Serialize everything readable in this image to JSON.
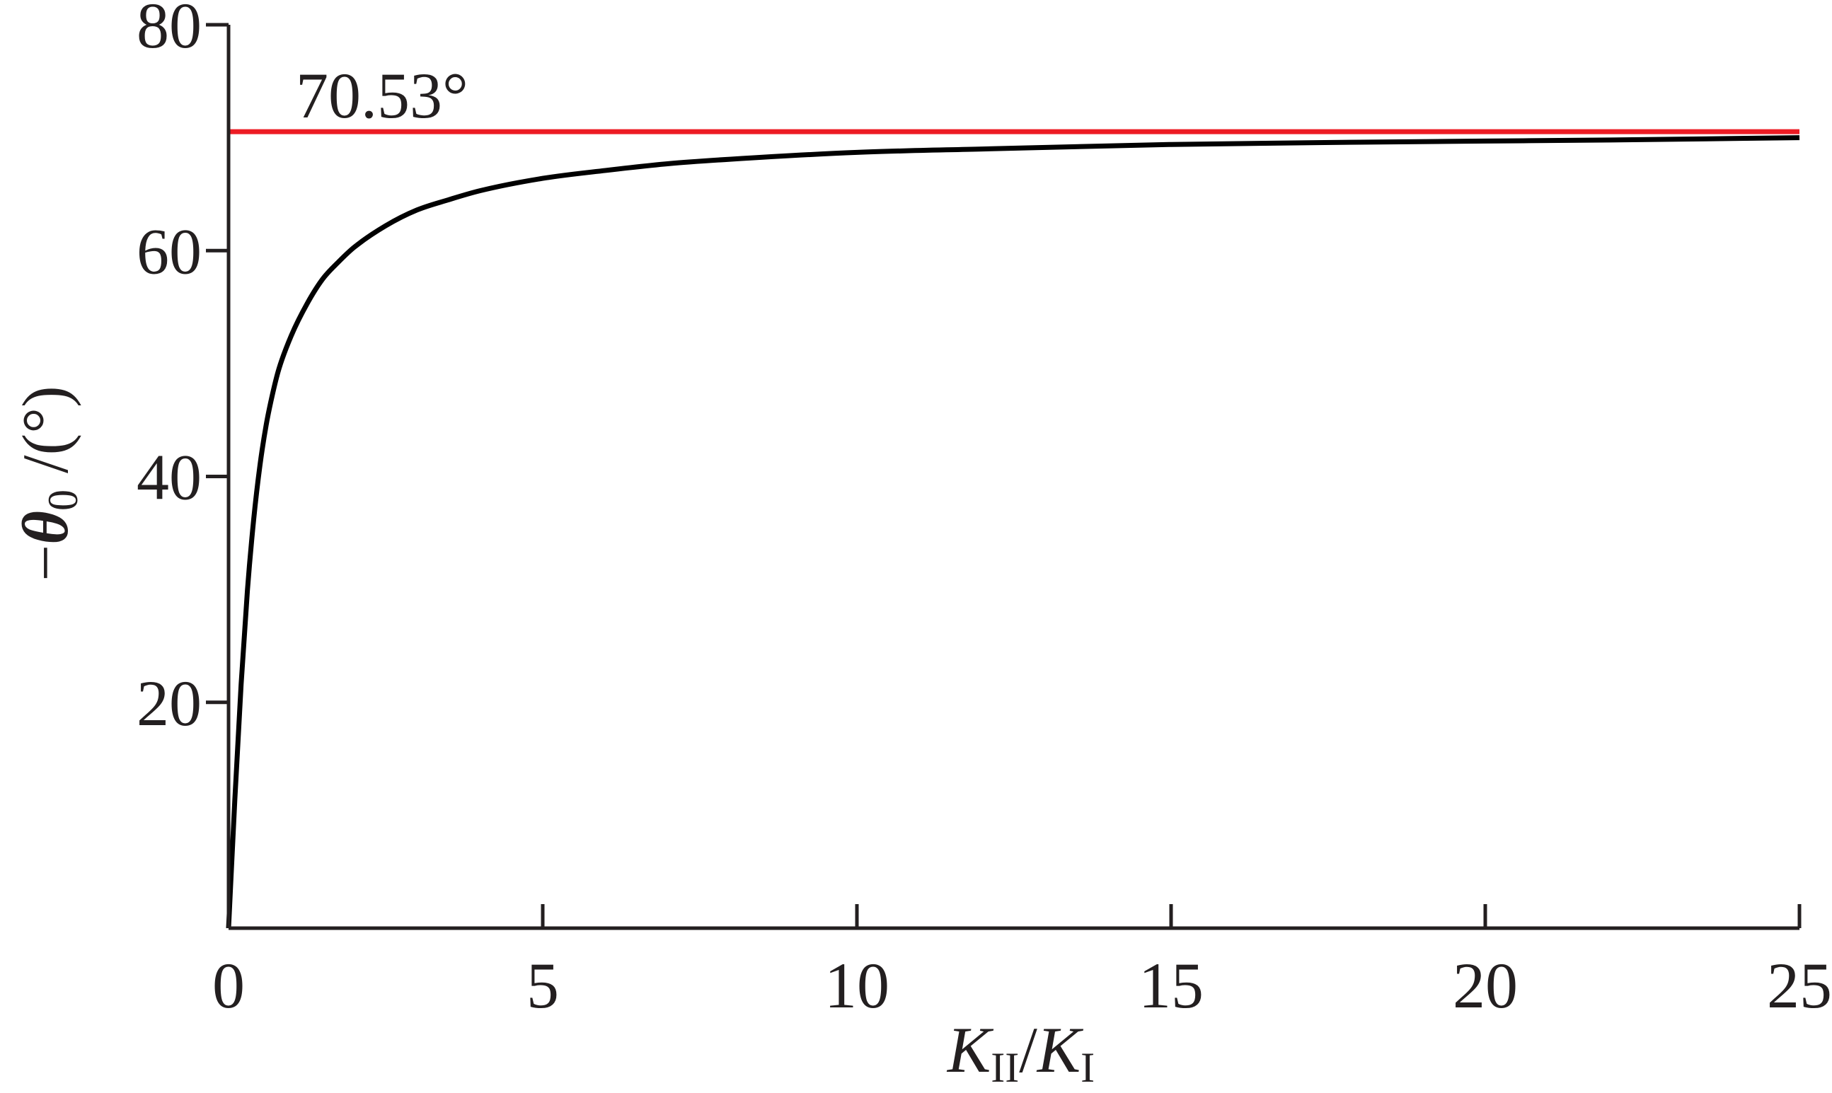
{
  "chart_data": {
    "type": "line",
    "title": "",
    "xlabel": {
      "parts": [
        {
          "text": "K",
          "style": "italic"
        },
        {
          "text": "II",
          "style": "sub"
        },
        {
          "text": "/",
          "style": "normal"
        },
        {
          "text": "K",
          "style": "italic"
        },
        {
          "text": "I",
          "style": "sub"
        }
      ]
    },
    "ylabel": {
      "parts": [
        {
          "text": "−",
          "style": "normal"
        },
        {
          "text": "θ",
          "style": "bold-italic"
        },
        {
          "text": "0",
          "style": "sub"
        },
        {
          "text": " /(°)",
          "style": "normal"
        }
      ]
    },
    "xlim": [
      0,
      25
    ],
    "ylim": [
      0,
      80
    ],
    "xticks": [
      0,
      5,
      10,
      15,
      20,
      25
    ],
    "xtick_labels": [
      "0",
      "5",
      "10",
      "15",
      "20",
      "25"
    ],
    "yticks": [
      20,
      40,
      60,
      80
    ],
    "ytick_labels": [
      "20",
      "40",
      "60",
      "80"
    ],
    "grid": false,
    "legend": "none",
    "series": [
      {
        "color": "#000000",
        "x": [
          0,
          0.1,
          0.2,
          0.3,
          0.4,
          0.5,
          0.6,
          0.7,
          0.8,
          1.0,
          1.25,
          1.5,
          1.75,
          2.0,
          2.5,
          3.0,
          3.5,
          4.0,
          5.0,
          6.0,
          7.0,
          8.0,
          10.0,
          12.0,
          15.0,
          18.0,
          20.0,
          22.0,
          25.0
        ],
        "y": [
          0,
          11.4,
          21.6,
          29.9,
          36.2,
          41.0,
          44.6,
          47.3,
          49.5,
          52.5,
          55.3,
          57.5,
          59.0,
          60.3,
          62.2,
          63.6,
          64.5,
          65.3,
          66.4,
          67.1,
          67.7,
          68.1,
          68.7,
          69.0,
          69.4,
          69.6,
          69.7,
          69.8,
          70.0
        ]
      }
    ],
    "reference_lines": [
      {
        "y": 70.53,
        "color": "#ed1c24",
        "label": "70.53°"
      }
    ]
  }
}
